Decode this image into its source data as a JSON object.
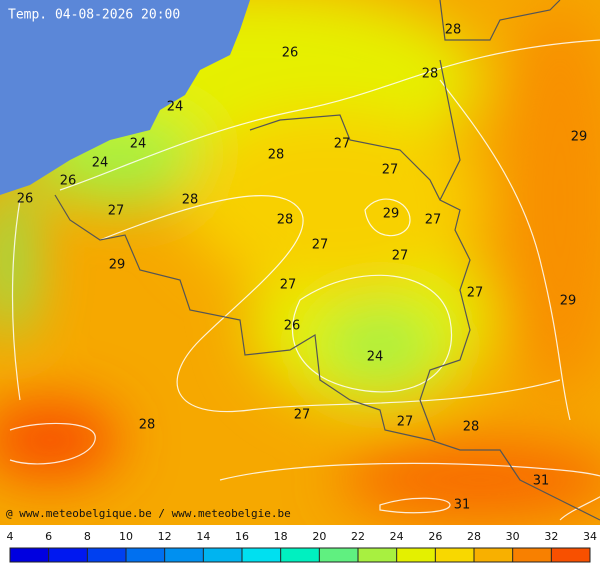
{
  "title": "Temp. 04-08-2026 20:00",
  "credit": "@ www.meteobelgique.be / www.meteobelgie.be",
  "labels": [
    26,
    28,
    28,
    24,
    24,
    24,
    26,
    26,
    28,
    27,
    27,
    29,
    27,
    28,
    28,
    29,
    27,
    27,
    27,
    29,
    27,
    27,
    29,
    26,
    24,
    27,
    27,
    28,
    28,
    31,
    31
  ],
  "colorbar": {
    "ticks": [
      4,
      6,
      8,
      10,
      12,
      14,
      16,
      18,
      20,
      22,
      24,
      26,
      28,
      30,
      32,
      34
    ],
    "colors": [
      "#0000e0",
      "#0018f0",
      "#0040f0",
      "#0070f0",
      "#0090f0",
      "#00b4f0",
      "#00e0f0",
      "#00f0c0",
      "#60f080",
      "#a8f040",
      "#e4f000",
      "#f8d800",
      "#f8b000",
      "#f88000",
      "#f85000"
    ]
  }
}
